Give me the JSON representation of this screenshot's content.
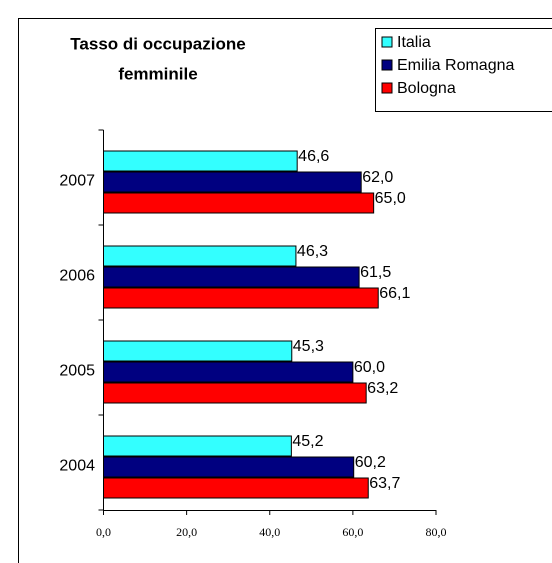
{
  "chart_data": {
    "type": "barh",
    "title": [
      "Tasso di occupazione",
      "femminile"
    ],
    "categories": [
      "2004",
      "2005",
      "2006",
      "2007"
    ],
    "series": [
      {
        "name": "Italia",
        "color": "#33ffff",
        "values": [
          45.2,
          45.3,
          46.3,
          46.6
        ],
        "value_labels": [
          "45,2",
          "45,3",
          "46,3",
          "46,6"
        ]
      },
      {
        "name": "Emilia Romagna",
        "color": "#000080",
        "values": [
          60.2,
          60.0,
          61.5,
          62.0
        ],
        "value_labels": [
          "60,2",
          "60,0",
          "61,5",
          "62,0"
        ]
      },
      {
        "name": "Bologna",
        "color": "#ff0000",
        "values": [
          63.7,
          63.2,
          66.1,
          65.0
        ],
        "value_labels": [
          "63,7",
          "63,2",
          "66,1",
          "65,0"
        ]
      }
    ],
    "xlim": [
      0,
      80
    ],
    "xticks": [
      {
        "value": 0,
        "label": "0,0"
      },
      {
        "value": 20,
        "label": "20,0"
      },
      {
        "value": 40,
        "label": "40,0"
      },
      {
        "value": 60,
        "label": "60,0"
      },
      {
        "value": 80,
        "label": "80,0"
      }
    ],
    "legend": "top-right"
  }
}
